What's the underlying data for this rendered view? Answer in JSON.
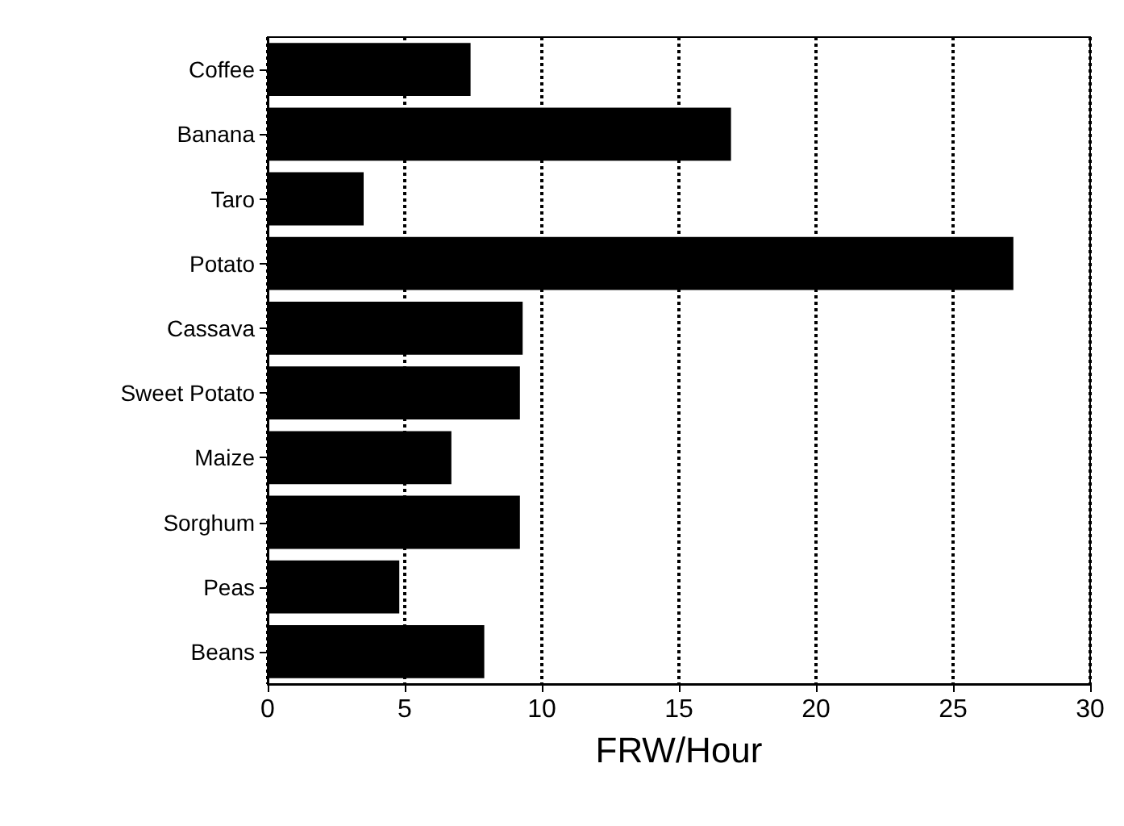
{
  "chart_data": {
    "type": "bar",
    "orientation": "horizontal",
    "xlabel": "FRW/Hour",
    "categories": [
      "Coffee",
      "Banana",
      "Taro",
      "Potato",
      "Cassava",
      "Sweet Potato",
      "Maize",
      "Sorghum",
      "Peas",
      "Beans"
    ],
    "values": [
      7.4,
      16.9,
      3.5,
      27.2,
      9.3,
      9.2,
      6.7,
      9.2,
      4.8,
      7.9
    ],
    "color": "#000000",
    "xlim": [
      0,
      30
    ],
    "xticks": [
      0,
      5,
      10,
      15,
      20,
      25,
      30
    ],
    "grid": "x",
    "line_style": "dotted"
  }
}
